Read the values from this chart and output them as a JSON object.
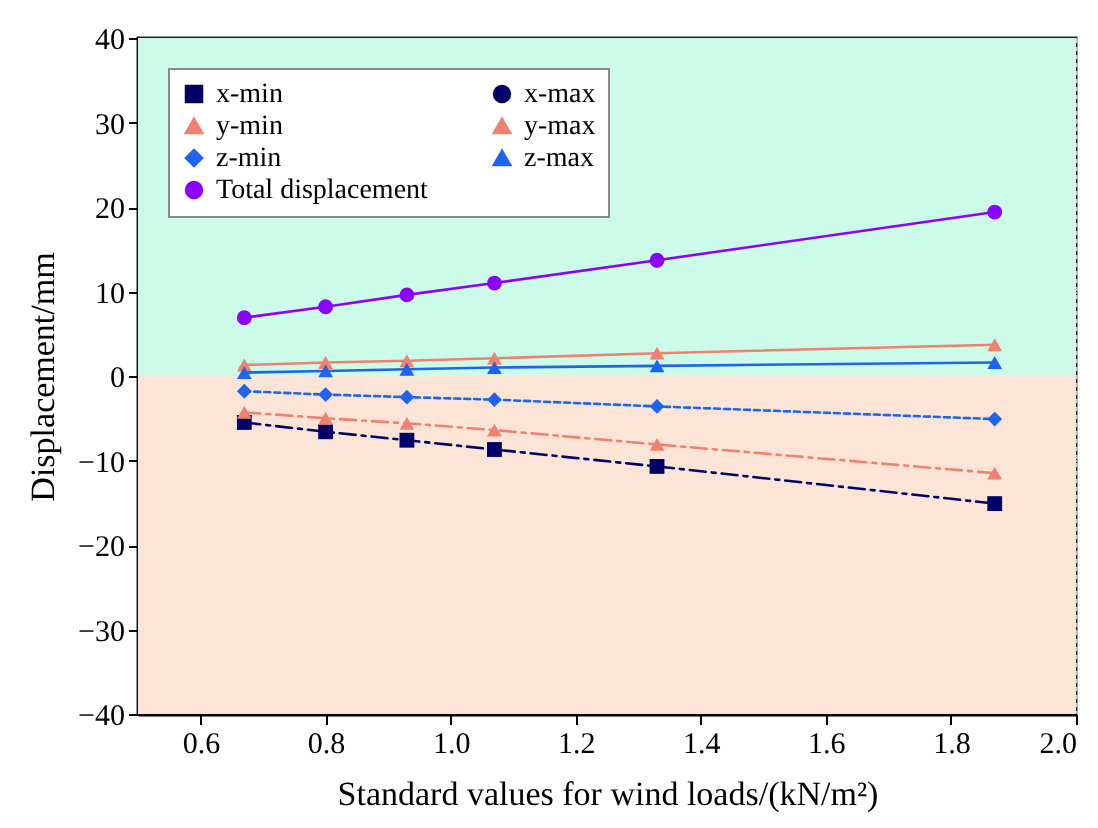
{
  "chart_data": {
    "type": "line",
    "xlabel": "Standard values for wind loads/(kN/m²)",
    "ylabel": "Displacement/mm",
    "x": [
      0.67,
      0.8,
      0.93,
      1.07,
      1.33,
      1.87
    ],
    "series": [
      {
        "name": "x-min",
        "color": "#000066",
        "marker": "square",
        "line_style": "dashed",
        "values": [
          -5.5,
          -6.6,
          -7.6,
          -8.7,
          -10.7,
          -15.1
        ]
      },
      {
        "name": "x-max",
        "color": "#000066",
        "marker": "circle",
        "line_style": "solid",
        "values": [
          null,
          null,
          null,
          null,
          null,
          null
        ]
      },
      {
        "name": "y-min",
        "color": "#f08070",
        "marker": "triangle",
        "line_style": "dashed",
        "values": [
          -4.3,
          -5.0,
          -5.6,
          -6.4,
          -8.1,
          -11.5
        ]
      },
      {
        "name": "y-max",
        "color": "#f08070",
        "marker": "triangle",
        "line_style": "solid",
        "values": [
          1.3,
          1.6,
          1.8,
          2.1,
          2.7,
          3.7
        ]
      },
      {
        "name": "z-min",
        "color": "#1e64f0",
        "marker": "diamond",
        "line_style": "dotted",
        "values": [
          -1.8,
          -2.2,
          -2.5,
          -2.8,
          -3.6,
          -5.1
        ]
      },
      {
        "name": "z-max",
        "color": "#1e64f0",
        "marker": "triangle",
        "line_style": "solid",
        "values": [
          0.4,
          0.6,
          0.8,
          1.0,
          1.2,
          1.6
        ]
      },
      {
        "name": "Total displacement",
        "color": "#8b00ff",
        "marker": "circle",
        "line_style": "solid",
        "values": [
          6.9,
          8.2,
          9.6,
          11.0,
          13.7,
          19.4
        ]
      }
    ],
    "bands": [
      {
        "axis": "y",
        "from": 0,
        "to": 40,
        "color": "#ccfbe9"
      },
      {
        "axis": "y",
        "from": -40,
        "to": 0,
        "color": "#fce5d6"
      }
    ],
    "xlim": [
      0.5,
      2.0
    ],
    "xticks": [
      0.6,
      0.8,
      {
        "value": 1,
        "label": "1.0"
      },
      1.2,
      1.4,
      1.6,
      1.8,
      {
        "value": 2,
        "label": "2.0"
      }
    ],
    "ylim": [
      -40,
      40
    ],
    "yticks": [
      -40,
      -30,
      -20,
      -10,
      0,
      10,
      20,
      30,
      40
    ],
    "grid": true,
    "legend": "top left"
  }
}
